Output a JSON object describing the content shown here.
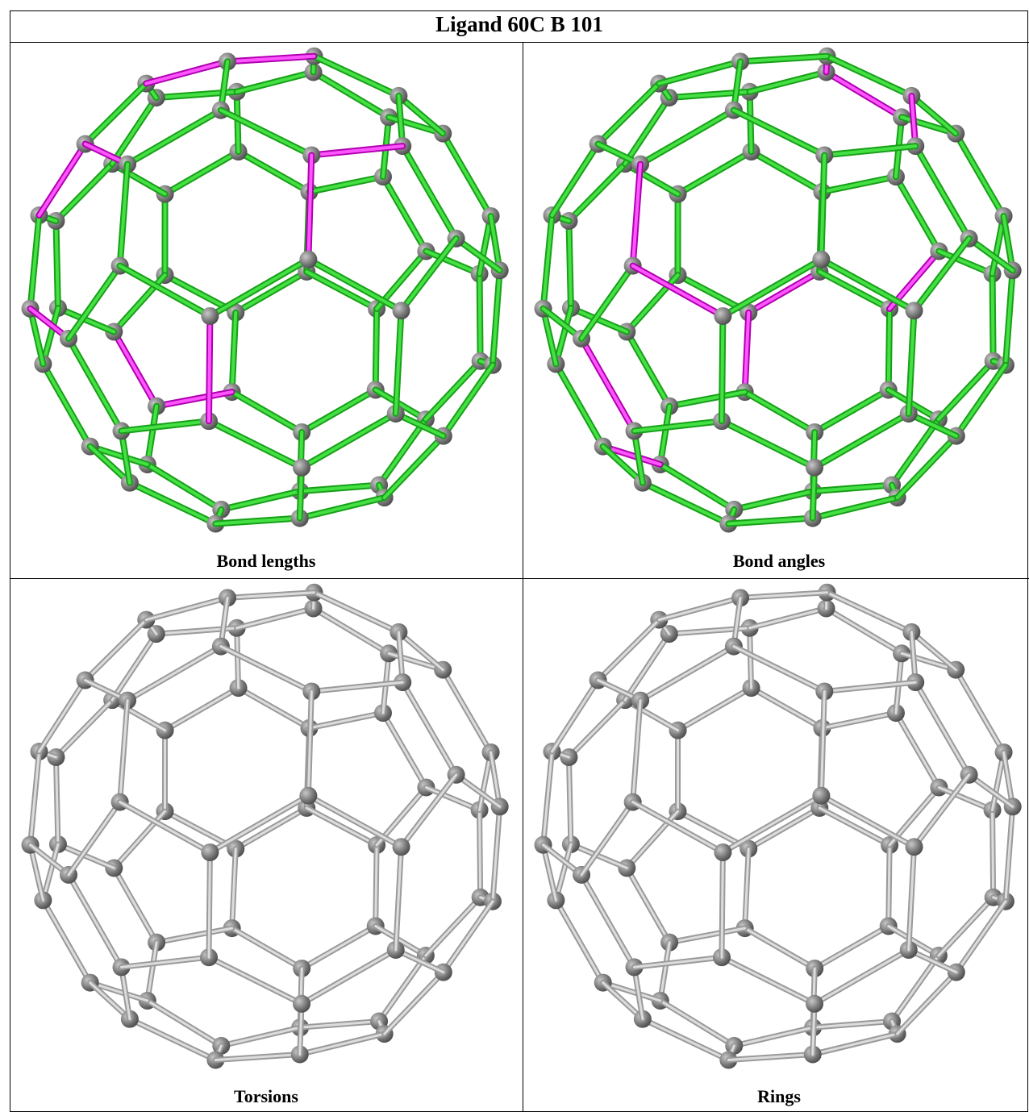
{
  "header": {
    "title": "Ligand 60C B 101"
  },
  "panels": [
    {
      "caption": "Bond lengths"
    },
    {
      "caption": "Bond angles"
    },
    {
      "caption": "Torsions"
    },
    {
      "caption": "Rings"
    }
  ]
}
